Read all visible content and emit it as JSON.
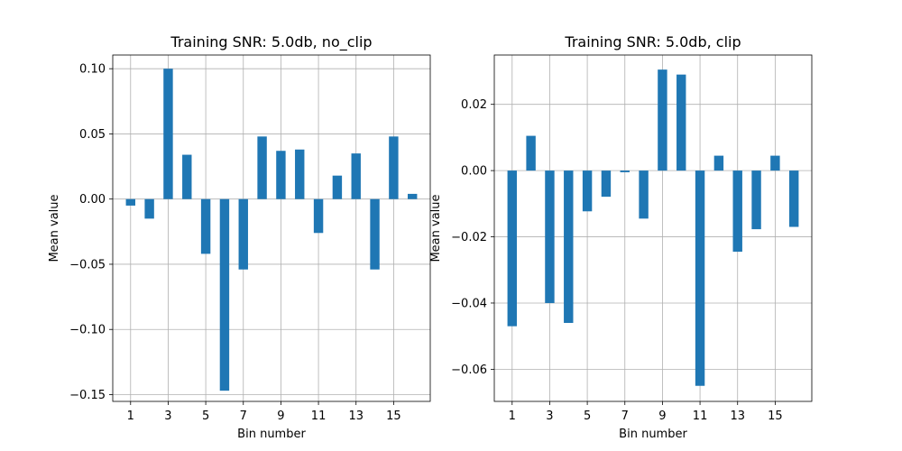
{
  "chart_data": [
    {
      "type": "bar",
      "title": "Training SNR: 5.0db, no_clip",
      "xlabel": "Bin number",
      "ylabel": "Mean value",
      "categories": [
        1,
        2,
        3,
        4,
        5,
        6,
        7,
        8,
        9,
        10,
        11,
        12,
        13,
        14,
        15,
        16
      ],
      "values": [
        -0.005,
        -0.015,
        0.1,
        0.034,
        -0.042,
        -0.147,
        -0.054,
        0.048,
        0.037,
        0.038,
        -0.026,
        0.018,
        0.035,
        -0.054,
        0.048,
        0.004
      ],
      "xticks": [
        1,
        3,
        5,
        7,
        9,
        11,
        13,
        15
      ],
      "yticks": [
        0.1,
        0.05,
        0.0,
        -0.05,
        -0.1,
        -0.15
      ],
      "yticklabels": [
        "0.10",
        "0.05",
        "0.00",
        "−0.05",
        "−0.10",
        "−0.15"
      ],
      "xlim": [
        0.05,
        16.95
      ],
      "ylim": [
        -0.1552,
        0.1105
      ],
      "grid": true,
      "bar_color": "#1f77b4"
    },
    {
      "type": "bar",
      "title": "Training SNR: 5.0db, clip",
      "xlabel": "Bin number",
      "ylabel": "Mean value",
      "categories": [
        1,
        2,
        3,
        4,
        5,
        6,
        7,
        8,
        9,
        10,
        11,
        12,
        13,
        14,
        15,
        16
      ],
      "values": [
        -0.047,
        0.0105,
        -0.04,
        -0.046,
        -0.0123,
        -0.0079,
        -0.0005,
        -0.0145,
        0.0305,
        0.029,
        -0.065,
        0.0045,
        -0.0245,
        -0.0177,
        0.0045,
        -0.017
      ],
      "xticks": [
        1,
        3,
        5,
        7,
        9,
        11,
        13,
        15
      ],
      "yticks": [
        0.02,
        0.0,
        -0.02,
        -0.04,
        -0.06
      ],
      "yticklabels": [
        "0.02",
        "0.00",
        "−0.02",
        "−0.04",
        "−0.06"
      ],
      "xlim": [
        0.05,
        16.95
      ],
      "ylim": [
        -0.0697,
        0.0349
      ],
      "grid": true,
      "bar_color": "#1f77b4"
    }
  ]
}
